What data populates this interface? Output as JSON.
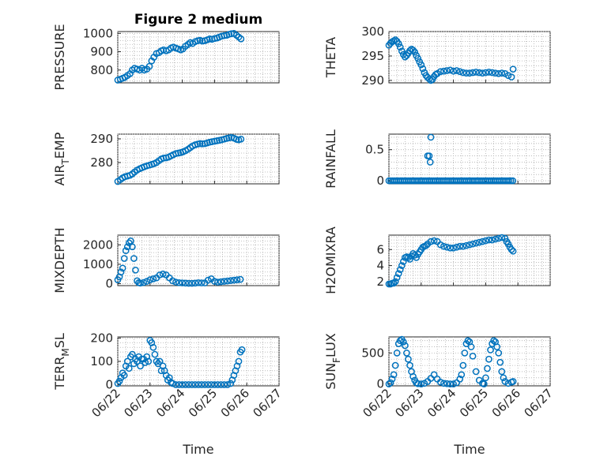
{
  "figure": {
    "title": "Figure 2 medium",
    "xlabel": "Time",
    "xticks": [
      "06/22",
      "06/23",
      "06/24",
      "06/25",
      "06/26",
      "06/27"
    ],
    "xrange": [
      0,
      5
    ]
  },
  "chart_data": [
    {
      "type": "scatter",
      "ylabel": "PRESSURE",
      "ylabel_sub": "",
      "ylabel_tail": "",
      "ylim": [
        730,
        1010
      ],
      "yticks": [
        800,
        900,
        1000
      ],
      "color": "#0072bd",
      "grid": true,
      "x": [
        0.0,
        0.08,
        0.15,
        0.22,
        0.3,
        0.38,
        0.45,
        0.52,
        0.6,
        0.68,
        0.75,
        0.82,
        0.9,
        0.98,
        1.05,
        1.12,
        1.2,
        1.28,
        1.35,
        1.42,
        1.5,
        1.58,
        1.65,
        1.72,
        1.8,
        1.88,
        1.95,
        2.02,
        2.1,
        2.18,
        2.25,
        2.32,
        2.4,
        2.48,
        2.55,
        2.62,
        2.7,
        2.78,
        2.85,
        2.92,
        3.0,
        3.08,
        3.15,
        3.22,
        3.3,
        3.38,
        3.45,
        3.52,
        3.6,
        3.68,
        3.75,
        3.82
      ],
      "y": [
        745,
        750,
        755,
        760,
        770,
        780,
        800,
        810,
        805,
        800,
        810,
        800,
        805,
        820,
        850,
        870,
        890,
        895,
        905,
        910,
        905,
        910,
        920,
        925,
        920,
        915,
        910,
        915,
        930,
        940,
        950,
        945,
        955,
        960,
        962,
        958,
        960,
        965,
        970,
        968,
        972,
        975,
        980,
        985,
        988,
        990,
        995,
        998,
        1000,
        990,
        980,
        970
      ]
    },
    {
      "type": "scatter",
      "ylabel": "THETA",
      "ylabel_sub": "",
      "ylabel_tail": "",
      "ylim": [
        289.5,
        300
      ],
      "yticks": [
        290,
        295,
        300
      ],
      "color": "#0072bd",
      "grid": true,
      "x": [
        0.0,
        0.05,
        0.1,
        0.15,
        0.2,
        0.25,
        0.3,
        0.35,
        0.4,
        0.45,
        0.5,
        0.55,
        0.6,
        0.65,
        0.7,
        0.75,
        0.8,
        0.85,
        0.9,
        0.95,
        1.0,
        1.05,
        1.1,
        1.15,
        1.2,
        1.25,
        1.3,
        1.35,
        1.4,
        1.45,
        1.5,
        1.6,
        1.7,
        1.8,
        1.9,
        2.0,
        2.1,
        2.2,
        2.3,
        2.4,
        2.5,
        2.6,
        2.7,
        2.8,
        2.9,
        3.0,
        3.1,
        3.2,
        3.3,
        3.4,
        3.5,
        3.6,
        3.7,
        3.8,
        3.85
      ],
      "y": [
        297.2,
        297.6,
        297.9,
        298.1,
        298.3,
        298.0,
        297.5,
        296.8,
        296.0,
        295.3,
        294.8,
        295.1,
        295.6,
        296.1,
        296.4,
        296.2,
        295.8,
        295.1,
        294.5,
        293.8,
        293.2,
        292.4,
        291.6,
        291.0,
        290.6,
        290.3,
        290.0,
        290.2,
        290.8,
        291.2,
        291.4,
        291.8,
        291.9,
        292.0,
        292.1,
        291.9,
        292.0,
        291.8,
        291.6,
        291.5,
        291.5,
        291.6,
        291.7,
        291.6,
        291.5,
        291.6,
        291.7,
        291.6,
        291.5,
        291.4,
        291.5,
        291.4,
        291.0,
        290.7,
        292.3
      ]
    },
    {
      "type": "scatter",
      "ylabel": "AIR",
      "ylabel_sub": "T",
      "ylabel_tail": "EMP",
      "ylim": [
        271,
        292
      ],
      "yticks": [
        280,
        290
      ],
      "color": "#0072bd",
      "grid": true,
      "x": [
        0.0,
        0.08,
        0.15,
        0.22,
        0.3,
        0.38,
        0.45,
        0.52,
        0.6,
        0.68,
        0.75,
        0.82,
        0.9,
        0.98,
        1.05,
        1.12,
        1.2,
        1.28,
        1.35,
        1.42,
        1.5,
        1.58,
        1.65,
        1.72,
        1.8,
        1.88,
        1.95,
        2.02,
        2.1,
        2.18,
        2.25,
        2.32,
        2.4,
        2.48,
        2.55,
        2.62,
        2.7,
        2.78,
        2.85,
        2.92,
        3.0,
        3.08,
        3.15,
        3.22,
        3.3,
        3.38,
        3.45,
        3.52,
        3.6,
        3.68,
        3.75,
        3.82
      ],
      "y": [
        272.0,
        272.8,
        273.5,
        274.0,
        274.3,
        274.6,
        275.2,
        276.0,
        276.8,
        277.4,
        277.8,
        278.2,
        278.6,
        278.9,
        279.2,
        279.5,
        280.0,
        280.8,
        281.5,
        281.9,
        282.0,
        282.3,
        282.8,
        283.3,
        283.8,
        284.0,
        284.2,
        284.5,
        285.0,
        285.6,
        286.3,
        287.0,
        287.5,
        287.8,
        288.0,
        287.9,
        288.0,
        288.3,
        288.6,
        288.8,
        289.0,
        289.2,
        289.4,
        289.6,
        289.9,
        290.2,
        290.4,
        290.6,
        290.3,
        289.8,
        289.6,
        289.9
      ]
    },
    {
      "type": "scatter",
      "ylabel": "RAINFALL",
      "ylabel_sub": "",
      "ylabel_tail": "",
      "ylim": [
        -0.05,
        0.75
      ],
      "yticks": [
        0,
        0.5
      ],
      "color": "#0072bd",
      "grid": true,
      "x": [
        0.0,
        0.06,
        0.12,
        0.18,
        0.24,
        0.3,
        0.36,
        0.42,
        0.48,
        0.54,
        0.6,
        0.66,
        0.72,
        0.78,
        0.84,
        0.9,
        0.96,
        1.02,
        1.08,
        1.14,
        1.2,
        1.26,
        1.32,
        1.38,
        1.44,
        1.5,
        1.56,
        1.62,
        1.68,
        1.74,
        1.8,
        1.86,
        1.92,
        1.98,
        2.04,
        2.1,
        2.16,
        2.22,
        2.28,
        2.34,
        2.4,
        2.46,
        2.52,
        2.58,
        2.64,
        2.7,
        2.76,
        2.82,
        2.88,
        2.94,
        3.0,
        3.06,
        3.12,
        3.18,
        3.24,
        3.3,
        3.36,
        3.42,
        3.48,
        3.54,
        3.6,
        3.66,
        3.72,
        3.78,
        3.84,
        1.2,
        1.25,
        1.28,
        1.3
      ],
      "y": [
        0,
        0,
        0,
        0,
        0,
        0,
        0,
        0,
        0,
        0,
        0,
        0,
        0,
        0,
        0,
        0,
        0,
        0,
        0,
        0,
        0,
        0,
        0,
        0,
        0,
        0,
        0,
        0,
        0,
        0,
        0,
        0,
        0,
        0,
        0,
        0,
        0,
        0,
        0,
        0,
        0,
        0,
        0,
        0,
        0,
        0,
        0,
        0,
        0,
        0,
        0,
        0,
        0,
        0,
        0,
        0,
        0,
        0,
        0,
        0,
        0,
        0,
        0,
        0,
        0,
        0.4,
        0.4,
        0.3,
        0.7
      ]
    },
    {
      "type": "scatter",
      "ylabel": "MIXDEPTH",
      "ylabel_sub": "",
      "ylabel_tail": "",
      "ylim": [
        -100,
        2500
      ],
      "yticks": [
        0,
        1000,
        2000
      ],
      "color": "#0072bd",
      "grid": true,
      "x": [
        0.0,
        0.05,
        0.1,
        0.15,
        0.2,
        0.25,
        0.3,
        0.35,
        0.4,
        0.45,
        0.5,
        0.55,
        0.6,
        0.65,
        0.7,
        0.8,
        0.9,
        1.0,
        1.1,
        1.2,
        1.3,
        1.4,
        1.5,
        1.6,
        1.7,
        1.8,
        1.9,
        2.0,
        2.1,
        2.2,
        2.3,
        2.4,
        2.5,
        2.6,
        2.7,
        2.8,
        2.9,
        3.0,
        3.1,
        3.2,
        3.3,
        3.4,
        3.5,
        3.6,
        3.7,
        3.8
      ],
      "y": [
        200,
        350,
        600,
        800,
        1300,
        1700,
        1900,
        2100,
        2200,
        1900,
        1300,
        700,
        150,
        50,
        30,
        60,
        120,
        200,
        250,
        300,
        450,
        500,
        450,
        300,
        150,
        80,
        50,
        40,
        30,
        20,
        20,
        30,
        50,
        40,
        40,
        180,
        250,
        120,
        80,
        100,
        120,
        140,
        160,
        180,
        200,
        220
      ]
    },
    {
      "type": "scatter",
      "ylabel": "H2OMIXRA",
      "ylabel_sub": "",
      "ylabel_tail": "",
      "ylim": [
        1.5,
        7.8
      ],
      "yticks": [
        2,
        4,
        6
      ],
      "color": "#0072bd",
      "grid": true,
      "x": [
        0.0,
        0.05,
        0.1,
        0.15,
        0.2,
        0.25,
        0.3,
        0.35,
        0.4,
        0.45,
        0.5,
        0.55,
        0.6,
        0.65,
        0.7,
        0.75,
        0.8,
        0.85,
        0.9,
        0.95,
        1.0,
        1.05,
        1.1,
        1.15,
        1.2,
        1.3,
        1.4,
        1.5,
        1.6,
        1.7,
        1.8,
        1.9,
        2.0,
        2.1,
        2.2,
        2.3,
        2.4,
        2.5,
        2.6,
        2.7,
        2.8,
        2.9,
        3.0,
        3.1,
        3.2,
        3.3,
        3.4,
        3.5,
        3.6,
        3.65,
        3.7,
        3.75,
        3.8,
        3.85
      ],
      "y": [
        1.7,
        1.7,
        1.8,
        1.8,
        2.0,
        2.5,
        3.0,
        3.5,
        4.0,
        4.5,
        5.0,
        5.1,
        5.0,
        4.8,
        5.2,
        5.5,
        5.3,
        5.0,
        5.4,
        5.7,
        6.0,
        6.3,
        6.4,
        6.5,
        6.7,
        7.0,
        7.1,
        7.0,
        6.6,
        6.4,
        6.3,
        6.2,
        6.2,
        6.3,
        6.4,
        6.4,
        6.5,
        6.6,
        6.7,
        6.8,
        6.9,
        7.0,
        7.1,
        7.2,
        7.2,
        7.3,
        7.4,
        7.5,
        7.4,
        7.0,
        6.7,
        6.3,
        6.0,
        5.8
      ]
    },
    {
      "type": "scatter",
      "ylabel": "TERR",
      "ylabel_sub": "M",
      "ylabel_tail": "SL",
      "ylim": [
        -5,
        205
      ],
      "yticks": [
        0,
        100,
        200
      ],
      "color": "#0072bd",
      "grid": true,
      "x": [
        0.0,
        0.05,
        0.1,
        0.15,
        0.2,
        0.25,
        0.3,
        0.35,
        0.4,
        0.45,
        0.5,
        0.55,
        0.6,
        0.65,
        0.7,
        0.75,
        0.8,
        0.85,
        0.9,
        0.95,
        1.0,
        1.05,
        1.1,
        1.15,
        1.2,
        1.25,
        1.3,
        1.35,
        1.4,
        1.45,
        1.5,
        1.55,
        1.6,
        1.65,
        1.7,
        1.8,
        1.9,
        2.0,
        2.1,
        2.2,
        2.3,
        2.4,
        2.5,
        2.6,
        2.7,
        2.8,
        2.9,
        3.0,
        3.1,
        3.2,
        3.3,
        3.4,
        3.5,
        3.55,
        3.6,
        3.65,
        3.7,
        3.75,
        3.8,
        3.85
      ],
      "y": [
        5,
        15,
        30,
        50,
        40,
        80,
        100,
        70,
        120,
        130,
        90,
        110,
        100,
        120,
        80,
        110,
        110,
        95,
        120,
        100,
        190,
        180,
        160,
        130,
        100,
        90,
        100,
        60,
        80,
        60,
        40,
        20,
        30,
        10,
        5,
        0,
        0,
        0,
        0,
        0,
        0,
        0,
        0,
        0,
        0,
        0,
        0,
        0,
        0,
        0,
        0,
        0,
        5,
        20,
        40,
        60,
        80,
        100,
        140,
        150
      ]
    },
    {
      "type": "scatter",
      "ylabel": "SUN",
      "ylabel_sub": "F",
      "ylabel_tail": "LUX",
      "ylim": [
        -30,
        760
      ],
      "yticks": [
        0,
        500
      ],
      "color": "#0072bd",
      "grid": true,
      "x": [
        0.0,
        0.05,
        0.1,
        0.15,
        0.2,
        0.25,
        0.3,
        0.35,
        0.4,
        0.45,
        0.5,
        0.55,
        0.6,
        0.65,
        0.7,
        0.75,
        0.8,
        0.85,
        0.9,
        1.0,
        1.1,
        1.2,
        1.3,
        1.4,
        1.5,
        1.6,
        1.7,
        1.8,
        1.9,
        2.0,
        2.1,
        2.2,
        2.25,
        2.3,
        2.35,
        2.4,
        2.45,
        2.5,
        2.55,
        2.6,
        2.7,
        2.8,
        2.9,
        2.95,
        3.0,
        3.05,
        3.1,
        3.15,
        3.2,
        3.25,
        3.3,
        3.35,
        3.4,
        3.45,
        3.5,
        3.55,
        3.6,
        3.7,
        3.8,
        3.85
      ],
      "y": [
        0,
        20,
        80,
        150,
        300,
        500,
        650,
        700,
        720,
        680,
        620,
        500,
        400,
        300,
        200,
        120,
        60,
        20,
        5,
        0,
        10,
        40,
        90,
        150,
        80,
        30,
        10,
        5,
        0,
        0,
        20,
        80,
        150,
        300,
        500,
        650,
        700,
        680,
        600,
        450,
        200,
        60,
        10,
        0,
        100,
        250,
        400,
        550,
        650,
        700,
        680,
        600,
        500,
        350,
        200,
        100,
        40,
        10,
        30,
        40
      ]
    }
  ]
}
